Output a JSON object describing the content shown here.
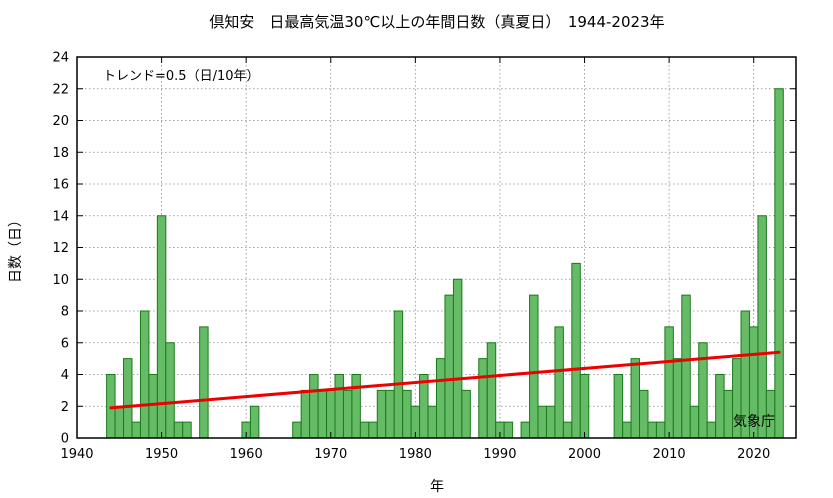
{
  "chart_data": {
    "type": "bar",
    "title": "倶知安　日最高気温30℃以上の年間日数（真夏日）　1944-2023年",
    "xlabel": "年",
    "ylabel": "日数（日）",
    "xlim": [
      1940,
      2025
    ],
    "ylim": [
      0,
      24
    ],
    "x_ticks": [
      1940,
      1950,
      1960,
      1970,
      1980,
      1990,
      2000,
      2010,
      2020
    ],
    "y_ticks": [
      0,
      2,
      4,
      6,
      8,
      10,
      12,
      14,
      16,
      18,
      20,
      22,
      24
    ],
    "grid": true,
    "bar_color": "#66bb66",
    "bar_edge_color": "#1a7a1a",
    "trend_color": "#ee0000",
    "trend_annotation": "トレンド=0.5（日/10年）",
    "trend": {
      "x": [
        1944,
        2023
      ],
      "y": [
        1.9,
        5.4
      ]
    },
    "credit": "気象庁",
    "x": [
      1944,
      1945,
      1946,
      1947,
      1948,
      1949,
      1950,
      1951,
      1952,
      1953,
      1954,
      1955,
      1956,
      1957,
      1958,
      1959,
      1960,
      1961,
      1962,
      1963,
      1964,
      1965,
      1966,
      1967,
      1968,
      1969,
      1970,
      1971,
      1972,
      1973,
      1974,
      1975,
      1976,
      1977,
      1978,
      1979,
      1980,
      1981,
      1982,
      1983,
      1984,
      1985,
      1986,
      1987,
      1988,
      1989,
      1990,
      1991,
      1992,
      1993,
      1994,
      1995,
      1996,
      1997,
      1998,
      1999,
      2000,
      2001,
      2002,
      2003,
      2004,
      2005,
      2006,
      2007,
      2008,
      2009,
      2010,
      2011,
      2012,
      2013,
      2014,
      2015,
      2016,
      2017,
      2018,
      2019,
      2020,
      2021,
      2022,
      2023
    ],
    "values": [
      4,
      2,
      5,
      1,
      8,
      4,
      14,
      6,
      1,
      1,
      0,
      7,
      0,
      0,
      0,
      0,
      1,
      2,
      0,
      0,
      0,
      0,
      1,
      3,
      4,
      3,
      3,
      4,
      3,
      4,
      1,
      1,
      3,
      3,
      8,
      3,
      2,
      4,
      2,
      5,
      9,
      10,
      3,
      0,
      5,
      6,
      1,
      1,
      0,
      1,
      9,
      2,
      2,
      7,
      1,
      11,
      4,
      0,
      0,
      0,
      4,
      1,
      5,
      3,
      1,
      1,
      7,
      5,
      9,
      2,
      6,
      1,
      4,
      3,
      5,
      8,
      7,
      14,
      3,
      22
    ]
  }
}
